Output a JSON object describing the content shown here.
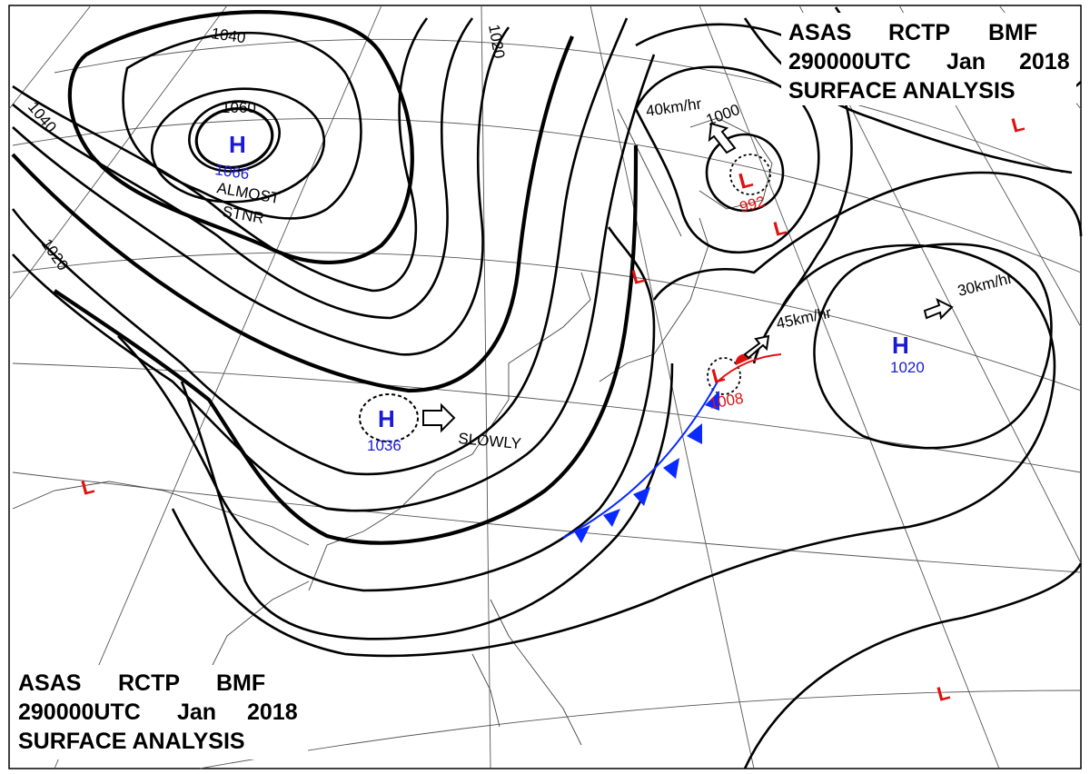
{
  "header_top": {
    "line1": [
      "ASAS",
      "RCTP",
      "BMF"
    ],
    "line2": [
      "290000UTC",
      "Jan",
      "2018"
    ],
    "line3": "SURFACE ANALYSIS"
  },
  "header_bottom": {
    "line1": [
      "ASAS",
      "RCTP",
      "BMF"
    ],
    "line2": [
      "290000UTC",
      "Jan",
      "2018"
    ],
    "line3": "SURFACE ANALYSIS"
  },
  "isobar_labels": {
    "i1040_top": "1040",
    "i1040_left": "1040",
    "i1020_top": "1020",
    "i1020_left": "1020",
    "i1060": "1060",
    "i1000": "1000"
  },
  "pressure_centers": {
    "high_mongolia": {
      "symbol": "H",
      "value": "1066"
    },
    "high_china": {
      "symbol": "H",
      "value": "1036"
    },
    "high_pacific": {
      "symbol": "H",
      "value": "1020"
    },
    "low_okhotsk": {
      "symbol": "L",
      "value": "992"
    },
    "low_japan": {
      "symbol": "L",
      "value": "1008"
    },
    "low_symbol": "L"
  },
  "motion_labels": {
    "almost": "ALMOST",
    "stnr": "STNR",
    "slowly": "SLOWLY",
    "okhotsk_speed": "40km/hr",
    "japan_speed": "45km/hr",
    "pacific_speed": "30km/hr"
  },
  "colors": {
    "high": "#1a1ad6",
    "low": "#e01010",
    "cold_front": "#0a2aff",
    "warm_front": "#e01010",
    "isobar": "#000000"
  }
}
